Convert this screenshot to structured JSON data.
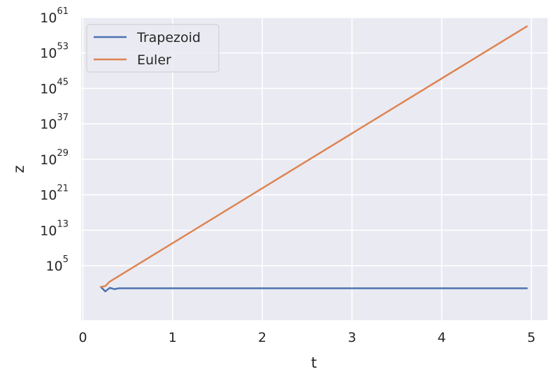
{
  "chart_data": {
    "type": "line",
    "title": "",
    "xlabel": "t",
    "ylabel": "z",
    "scale_y": "log",
    "xlim": [
      -0.02,
      5.18
    ],
    "ylim_log10": [
      -7.3,
      61
    ],
    "x_ticks": [
      0,
      1,
      2,
      3,
      4,
      5
    ],
    "x_tick_labels": [
      "0",
      "1",
      "2",
      "3",
      "4",
      "5"
    ],
    "y_ticks_log10": [
      5,
      13,
      21,
      29,
      37,
      45,
      53,
      61
    ],
    "y_tick_labels": [
      {
        "base": "10",
        "exp": "5"
      },
      {
        "base": "10",
        "exp": "13"
      },
      {
        "base": "10",
        "exp": "21"
      },
      {
        "base": "10",
        "exp": "29"
      },
      {
        "base": "10",
        "exp": "37"
      },
      {
        "base": "10",
        "exp": "45"
      },
      {
        "base": "10",
        "exp": "53"
      },
      {
        "base": "10",
        "exp": "61"
      }
    ],
    "grid": true,
    "legend_position": "top-left",
    "series": [
      {
        "name": "Trapezoid",
        "color": "#4c72b0",
        "x": [
          0.2,
          0.25,
          0.3,
          0.35,
          0.4,
          0.45,
          0.5,
          1,
          2,
          3,
          4,
          4.95
        ],
        "log10_y": [
          0.2,
          -0.8,
          0.0,
          -0.3,
          -0.1,
          -0.1,
          -0.1,
          -0.1,
          -0.1,
          -0.1,
          -0.1,
          -0.1
        ]
      },
      {
        "name": "Euler",
        "color": "#dd8452",
        "x": [
          0.2,
          0.25,
          0.3,
          4.95
        ],
        "log10_y": [
          0.2,
          0.4,
          1.4,
          59
        ]
      }
    ]
  }
}
